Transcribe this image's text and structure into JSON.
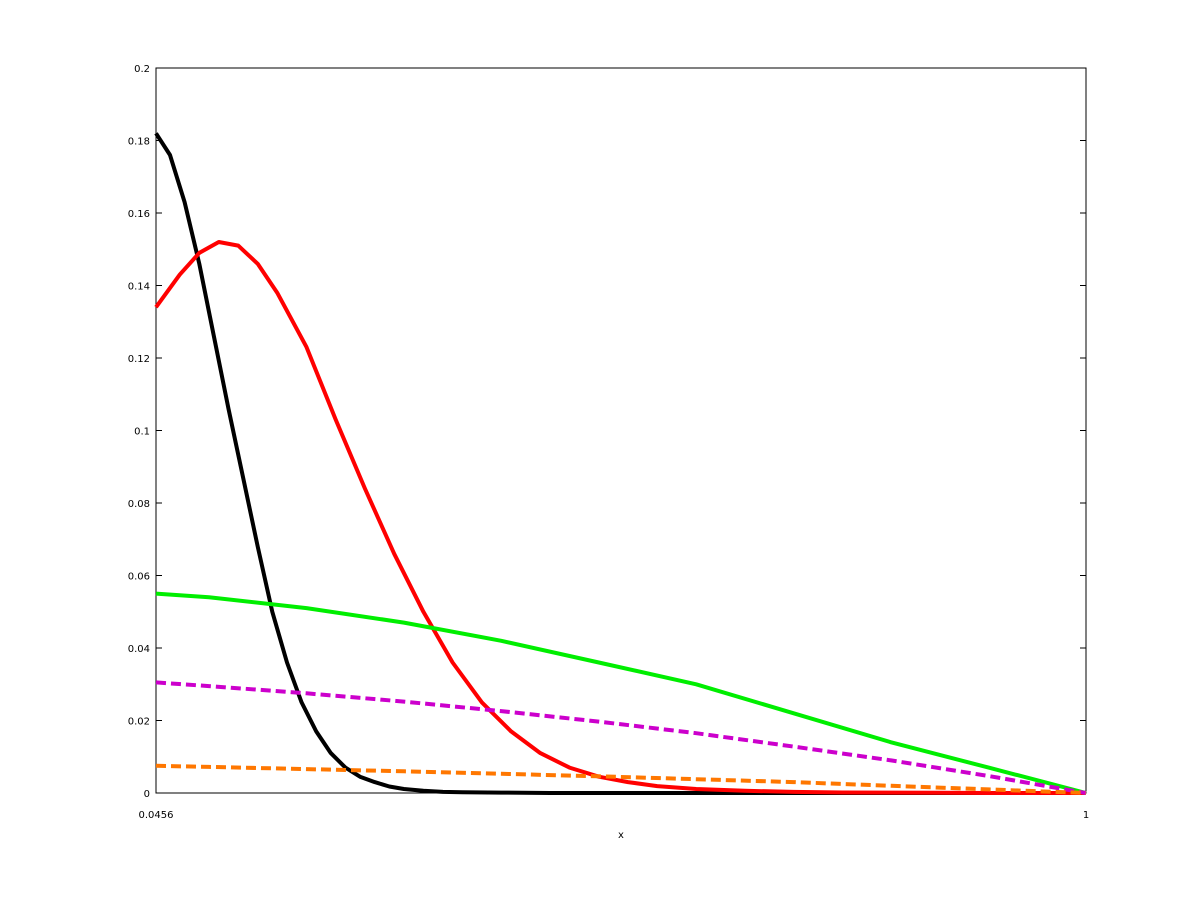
{
  "chart_data": {
    "type": "line",
    "title": "",
    "xlabel": "x",
    "ylabel": "",
    "xlim": [
      0.0456,
      1
    ],
    "ylim": [
      0,
      0.2
    ],
    "x_tick_labels": [
      "0.0456",
      "1"
    ],
    "y_ticks": [
      0,
      0.02,
      0.04,
      0.06,
      0.08,
      0.1,
      0.12,
      0.14,
      0.16,
      0.18,
      0.2
    ],
    "y_tick_labels": [
      "0",
      "0.02",
      "0.04",
      "0.06",
      "0.08",
      "0.1",
      "0.12",
      "0.14",
      "0.16",
      "0.18",
      "0.2"
    ],
    "grid": false,
    "legend": "none",
    "series": [
      {
        "color": "#000000",
        "dash": "solid",
        "x": [
          0.0456,
          0.06,
          0.075,
          0.09,
          0.105,
          0.12,
          0.135,
          0.15,
          0.165,
          0.18,
          0.195,
          0.21,
          0.225,
          0.24,
          0.255,
          0.27,
          0.285,
          0.3,
          0.32,
          0.34,
          0.36,
          0.4,
          0.45,
          0.5,
          0.6,
          0.7,
          0.8,
          0.9,
          1.0
        ],
        "y": [
          0.182,
          0.176,
          0.163,
          0.146,
          0.126,
          0.106,
          0.087,
          0.068,
          0.05,
          0.036,
          0.025,
          0.017,
          0.011,
          0.007,
          0.0045,
          0.003,
          0.0018,
          0.0011,
          0.0006,
          0.0003,
          0.0002,
          0.0001,
          0.0,
          0.0,
          0.0,
          0.0,
          0.0,
          0.0,
          0.0
        ]
      },
      {
        "color": "#ff0000",
        "dash": "solid",
        "x": [
          0.0456,
          0.07,
          0.09,
          0.11,
          0.13,
          0.15,
          0.17,
          0.2,
          0.23,
          0.26,
          0.29,
          0.32,
          0.35,
          0.38,
          0.41,
          0.44,
          0.47,
          0.5,
          0.53,
          0.56,
          0.6,
          0.65,
          0.7,
          0.75,
          0.8,
          0.85,
          0.9,
          0.95,
          1.0
        ],
        "y": [
          0.134,
          0.143,
          0.149,
          0.152,
          0.151,
          0.146,
          0.138,
          0.123,
          0.103,
          0.084,
          0.066,
          0.05,
          0.036,
          0.025,
          0.017,
          0.011,
          0.007,
          0.0045,
          0.003,
          0.0019,
          0.0011,
          0.0006,
          0.0003,
          0.00015,
          0.0001,
          5e-05,
          0.0,
          0.0,
          0.0
        ]
      },
      {
        "color": "#00ee00",
        "dash": "solid",
        "x": [
          0.0456,
          0.1,
          0.2,
          0.3,
          0.4,
          0.5,
          0.6,
          0.7,
          0.8,
          0.9,
          1.0
        ],
        "y": [
          0.055,
          0.054,
          0.051,
          0.047,
          0.042,
          0.036,
          0.03,
          0.022,
          0.014,
          0.007,
          0.0
        ]
      },
      {
        "color": "#cc00cc",
        "dash": "dashed",
        "x": [
          0.0456,
          0.1,
          0.2,
          0.3,
          0.4,
          0.5,
          0.6,
          0.7,
          0.8,
          0.9,
          1.0
        ],
        "y": [
          0.0305,
          0.0295,
          0.0275,
          0.0252,
          0.0226,
          0.0197,
          0.0165,
          0.0128,
          0.009,
          0.0047,
          0.0
        ]
      },
      {
        "color": "#ff7700",
        "dash": "dashed",
        "x": [
          0.0456,
          0.1,
          0.2,
          0.3,
          0.4,
          0.5,
          0.6,
          0.7,
          0.8,
          0.9,
          1.0
        ],
        "y": [
          0.0075,
          0.0072,
          0.0066,
          0.006,
          0.0053,
          0.0046,
          0.0038,
          0.003,
          0.002,
          0.001,
          0.0
        ]
      }
    ]
  }
}
